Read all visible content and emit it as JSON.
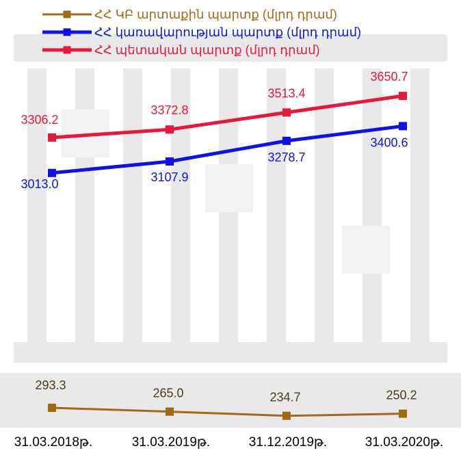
{
  "chart_data": {
    "type": "line",
    "categories": [
      "31.03.2018թ.",
      "31.03.2019թ.",
      "31.12.2019թ.",
      "31.03.2020թ."
    ],
    "series": [
      {
        "name": "ՀՀ ԿԲ արտաքին պարտք (մլրդ դրամ)",
        "values": [
          293.3,
          265.0,
          234.7,
          250.2
        ],
        "labels": [
          "293.3",
          "265.0",
          "234.7",
          "250.2"
        ],
        "color": "#A06A14"
      },
      {
        "name": "ՀՀ կառավարության պարտք (մլրդ դրամ)",
        "values": [
          3013.0,
          3107.9,
          3278.7,
          3400.6
        ],
        "labels": [
          "3013.0",
          "3107.9",
          "3278.7",
          "3400.6"
        ],
        "color": "#1010E8"
      },
      {
        "name": "ՀՀ պետական պարտք (մլրդ դրամ)",
        "values": [
          3306.2,
          3372.8,
          3513.4,
          3650.7
        ],
        "labels": [
          "3306.2",
          "3372.8",
          "3513.4",
          "3650.7"
        ],
        "color": "#E8183C"
      }
    ],
    "legend_position": "top-left",
    "grid": false
  }
}
